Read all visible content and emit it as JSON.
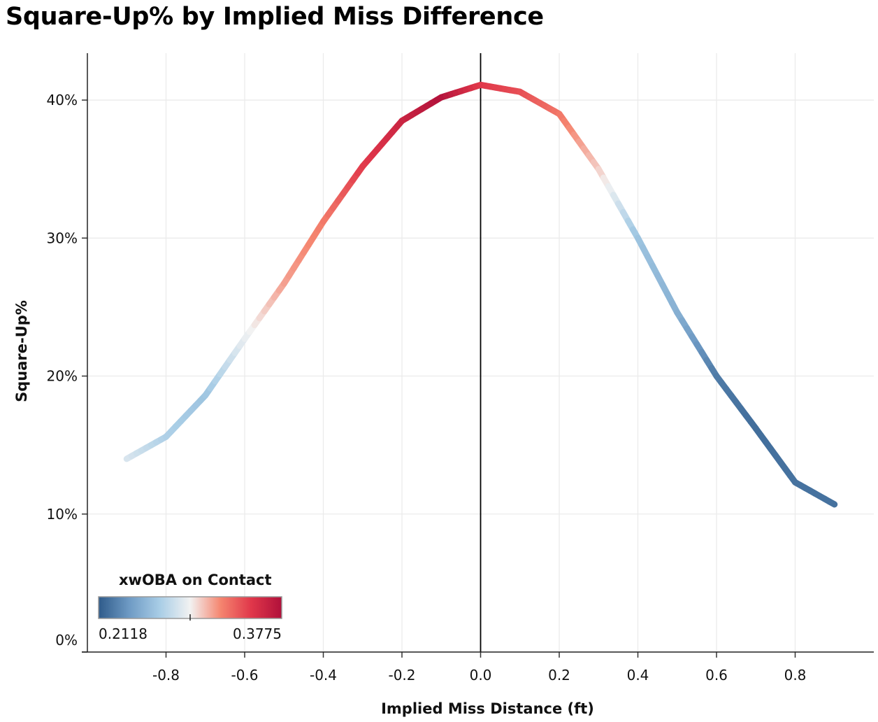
{
  "chart_data": {
    "type": "line",
    "title": "Square-Up% by Implied Miss Difference",
    "xlabel": "Implied Miss Distance (ft)",
    "ylabel": "Square-Up%",
    "xlim": [
      -1.0,
      1.0
    ],
    "ylim": [
      0,
      43.4
    ],
    "x_ticks": [
      -0.8,
      -0.6,
      -0.4,
      -0.2,
      0.0,
      0.2,
      0.4,
      0.6,
      0.8
    ],
    "x_tick_labels": [
      "-0.8",
      "-0.6",
      "-0.4",
      "-0.2",
      "0.0",
      "0.2",
      "0.4",
      "0.6",
      "0.8"
    ],
    "y_ticks": [
      0,
      10,
      20,
      30,
      40
    ],
    "y_tick_labels": [
      "0%",
      "10%",
      "20%",
      "30%",
      "40%"
    ],
    "grid": true,
    "reference_line_x": 0.0,
    "series": [
      {
        "x": [
          -0.9,
          -0.8,
          -0.7,
          -0.6,
          -0.5,
          -0.4,
          -0.3,
          -0.2,
          -0.1,
          0.0,
          0.1,
          0.2,
          0.3,
          0.4,
          0.5,
          0.6,
          0.7,
          0.8,
          0.9
        ],
        "y": [
          14.0,
          15.6,
          18.6,
          22.7,
          26.7,
          31.2,
          35.2,
          38.5,
          40.2,
          41.1,
          40.6,
          39.0,
          35.0,
          30.0,
          24.6,
          20.0,
          16.2,
          12.3,
          10.7
        ],
        "color_values": [
          0.286,
          0.27,
          0.262,
          0.29,
          0.315,
          0.325,
          0.348,
          0.362,
          0.376,
          0.35,
          0.342,
          0.328,
          0.305,
          0.262,
          0.252,
          0.226,
          0.22,
          0.222,
          0.222
        ]
      }
    ],
    "legend": {
      "title": "xwOBA on Contact",
      "min_label": "0.2118",
      "max_label": "0.3775",
      "min": 0.2118,
      "max": 0.3775,
      "position": "bottom-left",
      "colors": [
        "#2f5b8a",
        "#6e9ac4",
        "#a8cde6",
        "#f2f2f2",
        "#f5856f",
        "#e0374a",
        "#b0103a"
      ]
    }
  }
}
